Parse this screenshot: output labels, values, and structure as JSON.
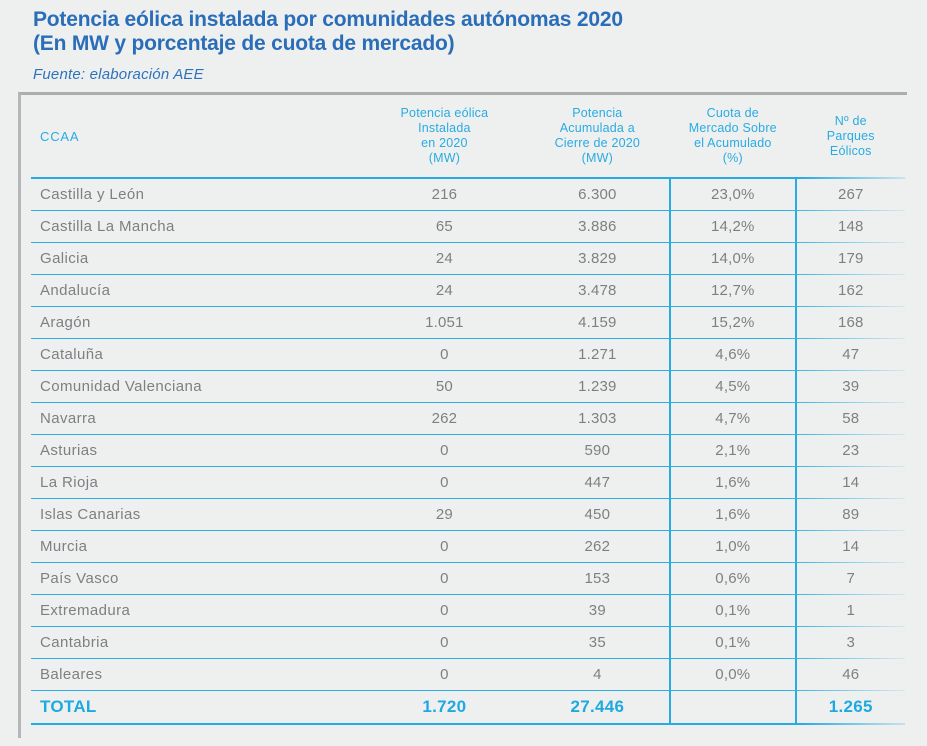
{
  "page": {
    "title": "Potencia eólica instalada por comunidades autónomas 2020\n(En MW y porcentaje de cuota de mercado)",
    "source": "Fuente: elaboración AEE"
  },
  "colors": {
    "title_blue": "#2a6db8",
    "accent_cyan": "#29abe2",
    "row_text_gray": "#7d8083",
    "panel_border_gray": "#b0b2b4",
    "background": "#eef0f0"
  },
  "table": {
    "columns": [
      {
        "label": "CCAA"
      },
      {
        "label": "Potencia eólica\nInstalada\nen 2020\n(MW)"
      },
      {
        "label": "Potencia\nAcumulada a\nCierre de 2020\n(MW)"
      },
      {
        "label": "Cuota de\nMercado Sobre\nel Acumulado\n(%)"
      },
      {
        "label": "Nº de\nParques\nEólicos"
      }
    ],
    "rows": [
      {
        "ccaa": "Castilla y León",
        "instalada": "216",
        "acumulada": "6.300",
        "cuota": "23,0%",
        "parques": "267"
      },
      {
        "ccaa": "Castilla La Mancha",
        "instalada": "65",
        "acumulada": "3.886",
        "cuota": "14,2%",
        "parques": "148"
      },
      {
        "ccaa": "Galicia",
        "instalada": "24",
        "acumulada": "3.829",
        "cuota": "14,0%",
        "parques": "179"
      },
      {
        "ccaa": "Andalucía",
        "instalada": "24",
        "acumulada": "3.478",
        "cuota": "12,7%",
        "parques": "162"
      },
      {
        "ccaa": "Aragón",
        "instalada": "1.051",
        "acumulada": "4.159",
        "cuota": "15,2%",
        "parques": "168"
      },
      {
        "ccaa": "Cataluña",
        "instalada": "0",
        "acumulada": "1.271",
        "cuota": "4,6%",
        "parques": "47"
      },
      {
        "ccaa": "Comunidad Valenciana",
        "instalada": "50",
        "acumulada": "1.239",
        "cuota": "4,5%",
        "parques": "39"
      },
      {
        "ccaa": "Navarra",
        "instalada": "262",
        "acumulada": "1.303",
        "cuota": "4,7%",
        "parques": "58"
      },
      {
        "ccaa": "Asturias",
        "instalada": "0",
        "acumulada": "590",
        "cuota": "2,1%",
        "parques": "23"
      },
      {
        "ccaa": "La Rioja",
        "instalada": "0",
        "acumulada": "447",
        "cuota": "1,6%",
        "parques": "14"
      },
      {
        "ccaa": "Islas Canarias",
        "instalada": "29",
        "acumulada": "450",
        "cuota": "1,6%",
        "parques": "89"
      },
      {
        "ccaa": "Murcia",
        "instalada": "0",
        "acumulada": "262",
        "cuota": "1,0%",
        "parques": "14"
      },
      {
        "ccaa": "País Vasco",
        "instalada": "0",
        "acumulada": "153",
        "cuota": "0,6%",
        "parques": "7"
      },
      {
        "ccaa": "Extremadura",
        "instalada": "0",
        "acumulada": "39",
        "cuota": "0,1%",
        "parques": "1"
      },
      {
        "ccaa": "Cantabria",
        "instalada": "0",
        "acumulada": "35",
        "cuota": "0,1%",
        "parques": "3"
      },
      {
        "ccaa": "Baleares",
        "instalada": "0",
        "acumulada": "4",
        "cuota": "0,0%",
        "parques": "46"
      }
    ],
    "total": {
      "label": "TOTAL",
      "instalada": "1.720",
      "acumulada": "27.446",
      "cuota": "",
      "parques": "1.265"
    }
  },
  "chart_data": {
    "type": "table",
    "title": "Potencia eólica instalada por comunidades autónomas 2020 (En MW y porcentaje de cuota de mercado)",
    "source": "Fuente: elaboración AEE",
    "columns": [
      "CCAA",
      "Potencia eólica Instalada en 2020 (MW)",
      "Potencia Acumulada a Cierre de 2020 (MW)",
      "Cuota de Mercado Sobre el Acumulado (%)",
      "Nº de Parques Eólicos"
    ],
    "rows": [
      [
        "Castilla y León",
        216,
        6300,
        23.0,
        267
      ],
      [
        "Castilla La Mancha",
        65,
        3886,
        14.2,
        148
      ],
      [
        "Galicia",
        24,
        3829,
        14.0,
        179
      ],
      [
        "Andalucía",
        24,
        3478,
        12.7,
        162
      ],
      [
        "Aragón",
        1051,
        4159,
        15.2,
        168
      ],
      [
        "Cataluña",
        0,
        1271,
        4.6,
        47
      ],
      [
        "Comunidad Valenciana",
        50,
        1239,
        4.5,
        39
      ],
      [
        "Navarra",
        262,
        1303,
        4.7,
        58
      ],
      [
        "Asturias",
        0,
        590,
        2.1,
        23
      ],
      [
        "La Rioja",
        0,
        447,
        1.6,
        14
      ],
      [
        "Islas Canarias",
        29,
        450,
        1.6,
        89
      ],
      [
        "Murcia",
        0,
        262,
        1.0,
        14
      ],
      [
        "País Vasco",
        0,
        153,
        0.6,
        7
      ],
      [
        "Extremadura",
        0,
        39,
        0.1,
        1
      ],
      [
        "Cantabria",
        0,
        35,
        0.1,
        3
      ],
      [
        "Baleares",
        0,
        4,
        0.0,
        46
      ]
    ],
    "total": [
      "TOTAL",
      1720,
      27446,
      null,
      1265
    ]
  }
}
